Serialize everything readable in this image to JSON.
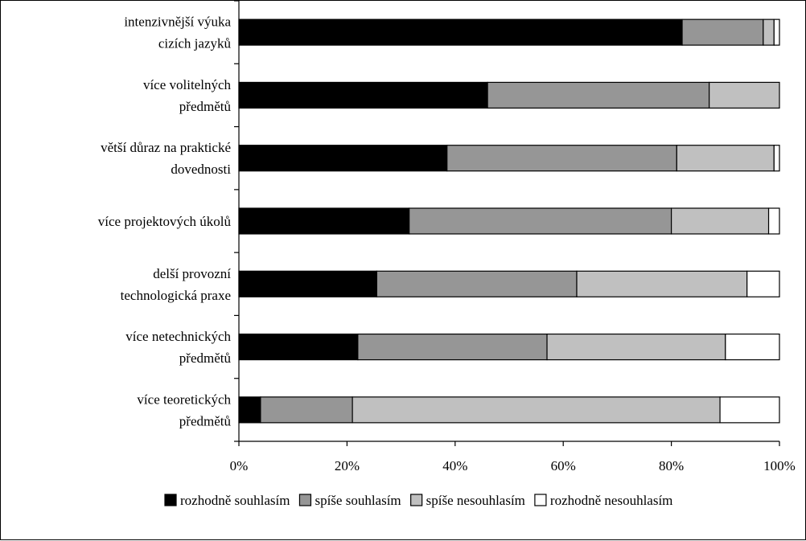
{
  "chart_data": {
    "type": "bar",
    "orientation": "horizontal",
    "stacked": "percent",
    "categories": [
      [
        "intenzivnější výuka",
        "cizích jazyků"
      ],
      [
        "více volitelných",
        "předmětů"
      ],
      [
        "větší důraz na praktické",
        "dovednosti"
      ],
      [
        "více projektových úkolů"
      ],
      [
        "delší provozní",
        "technologická praxe"
      ],
      [
        "více netechnických",
        "předmětů"
      ],
      [
        "více teoretických",
        "předmětů"
      ]
    ],
    "series": [
      {
        "name": "rozhodně souhlasím",
        "color": "#000000",
        "values": [
          82,
          46,
          38.5,
          31.5,
          25.5,
          22,
          4
        ]
      },
      {
        "name": "spíše souhlasím",
        "color": "#969696",
        "values": [
          15,
          41,
          42.5,
          48.5,
          37,
          35,
          17
        ]
      },
      {
        "name": "spíše nesouhlasím",
        "color": "#c0c0c0",
        "values": [
          2,
          13,
          18,
          18,
          31.5,
          33,
          68
        ]
      },
      {
        "name": "rozhodně nesouhlasím",
        "color": "#ffffff",
        "values": [
          1,
          0,
          1,
          2,
          6,
          10,
          11
        ]
      }
    ],
    "xlim": [
      0,
      100
    ],
    "xticks": [
      "0%",
      "20%",
      "40%",
      "60%",
      "80%",
      "100%"
    ],
    "legend_position": "bottom",
    "grid": false
  }
}
